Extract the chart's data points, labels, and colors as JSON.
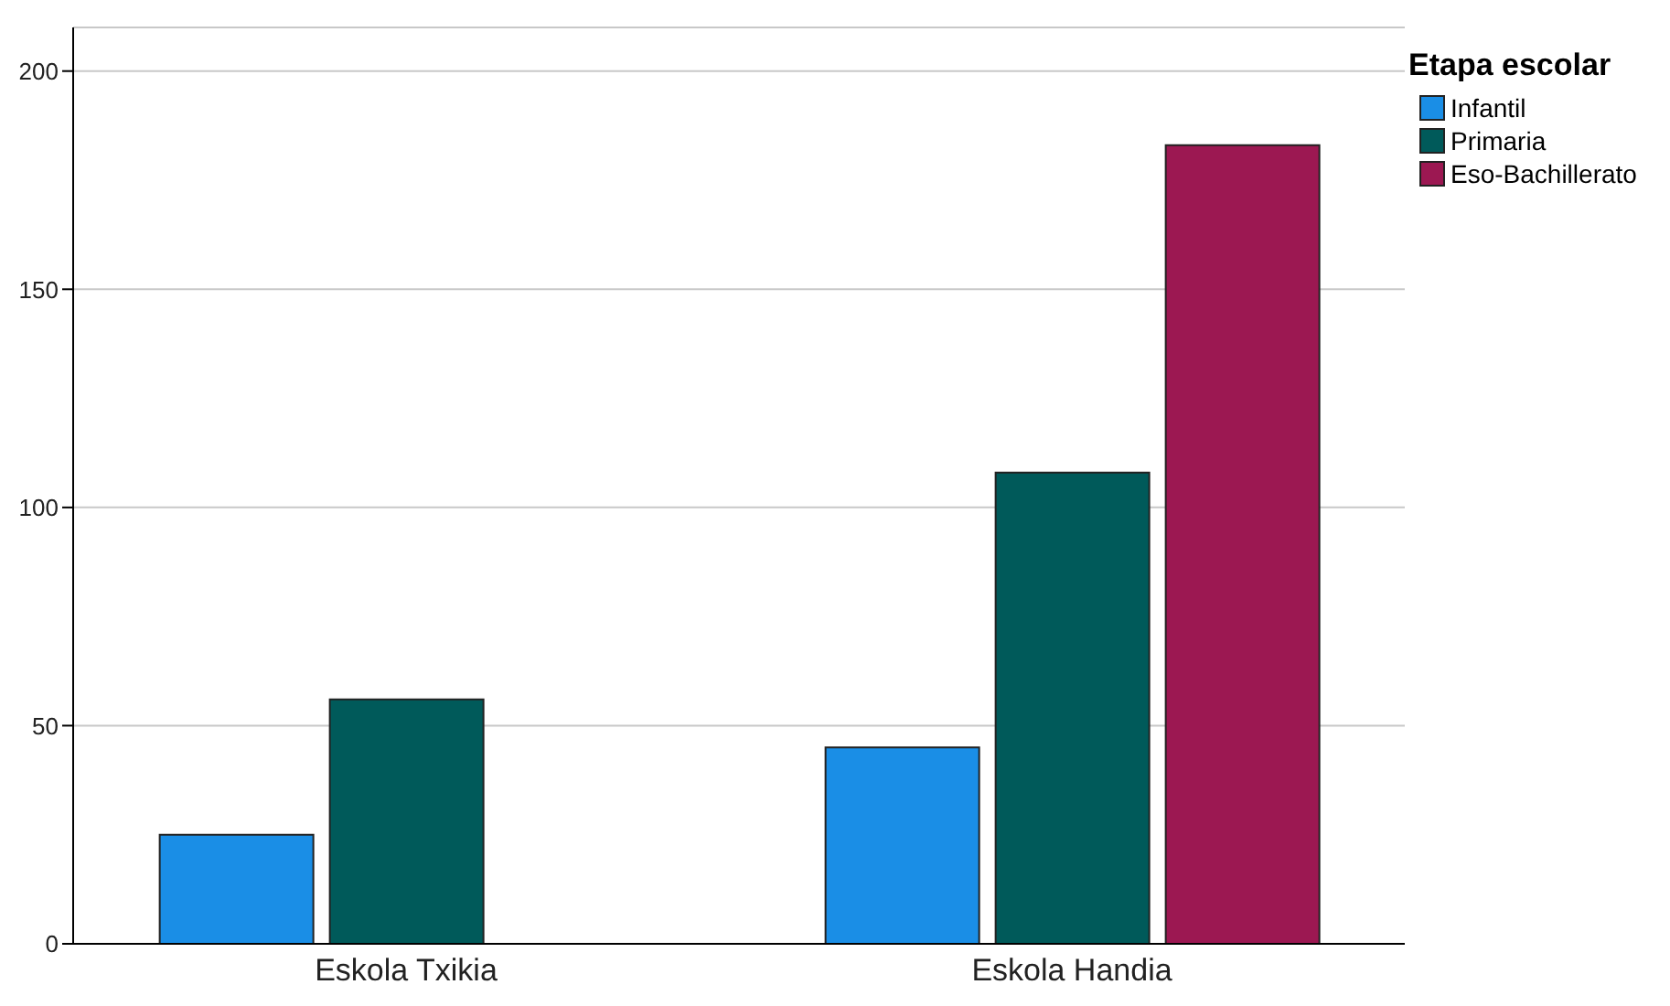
{
  "chart_data": {
    "type": "bar",
    "legend_title": "Etapa escolar",
    "categories": [
      "Eskola Txikia",
      "Eskola Handia"
    ],
    "series": [
      {
        "name": "Infantil",
        "color": "#1a8ee6",
        "values": [
          25,
          45
        ]
      },
      {
        "name": "Primaria",
        "color": "#005a5a",
        "values": [
          56,
          108
        ]
      },
      {
        "name": "Eso-Bachillerato",
        "color": "#9c1852",
        "values": [
          null,
          183
        ]
      }
    ],
    "ylim": [
      0,
      210
    ],
    "yticks": [
      0,
      50,
      100,
      150,
      200
    ],
    "grid": "y",
    "legend": "top right"
  }
}
